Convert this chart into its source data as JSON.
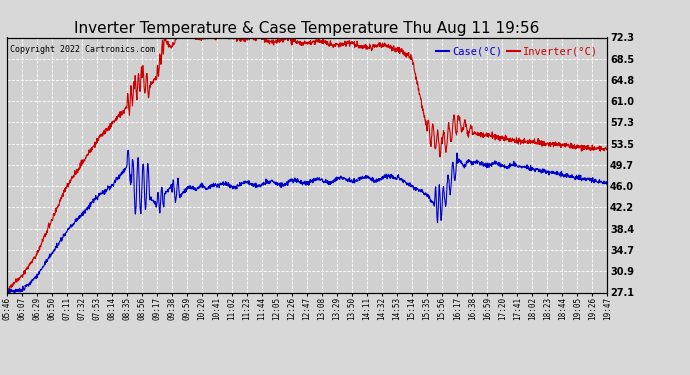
{
  "title": "Inverter Temperature & Case Temperature Thu Aug 11 19:56",
  "copyright": "Copyright 2022 Cartronics.com",
  "legend_case": "Case(°C)",
  "legend_inverter": "Inverter(°C)",
  "ylabel_right_ticks": [
    27.1,
    30.9,
    34.7,
    38.4,
    42.2,
    46.0,
    49.7,
    53.5,
    57.3,
    61.0,
    64.8,
    68.5,
    72.3
  ],
  "ylim": [
    27.1,
    72.3
  ],
  "background_color": "#d8d8d8",
  "plot_bg_color": "#d0d0d0",
  "grid_color": "#ffffff",
  "case_color": "#0000cc",
  "inverter_color": "#cc0000",
  "title_fontsize": 11,
  "x_tick_labels": [
    "05:46",
    "06:07",
    "06:29",
    "06:50",
    "07:11",
    "07:32",
    "07:53",
    "08:14",
    "08:35",
    "08:56",
    "09:17",
    "09:38",
    "09:59",
    "10:20",
    "10:41",
    "11:02",
    "11:23",
    "11:44",
    "12:05",
    "12:26",
    "12:47",
    "13:08",
    "13:29",
    "13:50",
    "14:11",
    "14:32",
    "14:53",
    "15:14",
    "15:35",
    "15:56",
    "16:17",
    "16:38",
    "16:59",
    "17:20",
    "17:41",
    "18:02",
    "18:23",
    "18:44",
    "19:05",
    "19:26",
    "19:47"
  ]
}
